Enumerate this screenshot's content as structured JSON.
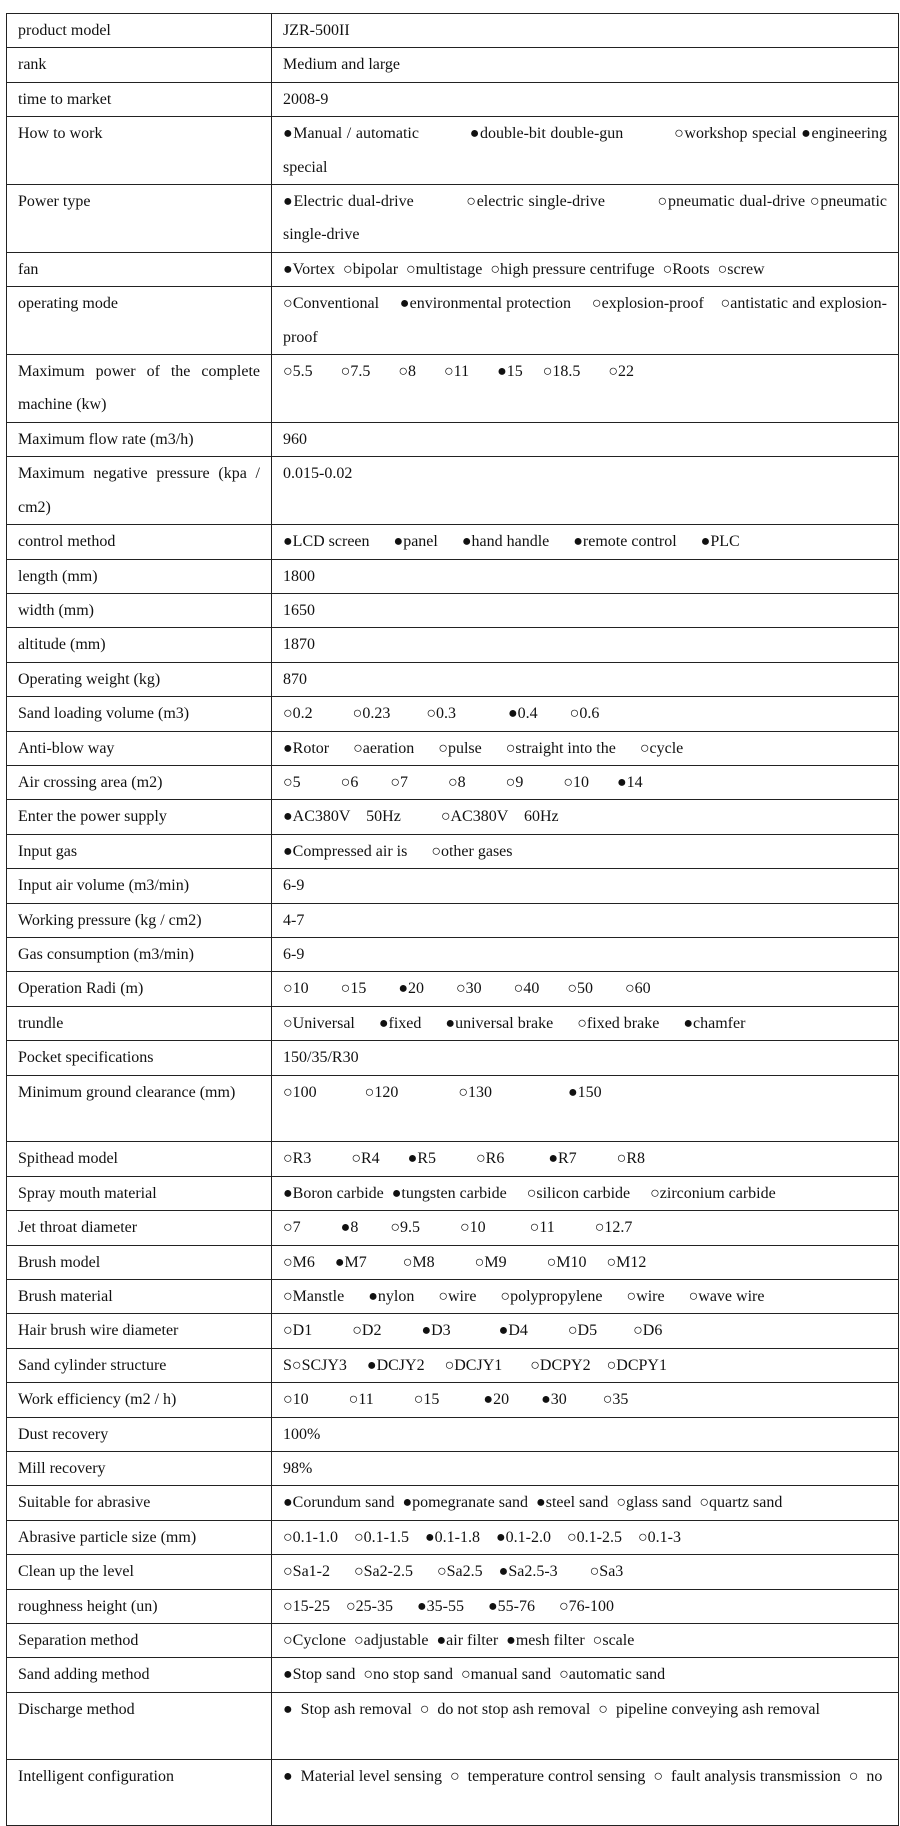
{
  "rows": [
    {
      "label": "product model",
      "value": "JZR-500II"
    },
    {
      "label": "rank",
      "value": "Medium and large"
    },
    {
      "label": "time to market",
      "value": "2008-9"
    },
    {
      "label": "How to work",
      "value": "●Manual / automatic           ●double-bit double-gun           ○workshop special ●engineering special"
    },
    {
      "label": "Power type",
      "value": "●Electric dual-drive           ○electric single-drive           ○pneumatic dual-drive ○pneumatic single-drive"
    },
    {
      "label": "fan",
      "value": "●Vortex  ○bipolar  ○multistage  ○high pressure centrifuge  ○Roots  ○screw"
    },
    {
      "label": "operating mode",
      "value": "○Conventional     ●environmental protection     ○explosion-proof    ○antistatic and explosion-proof"
    },
    {
      "label": "Maximum power of the complete machine (kw)",
      "value": "○5.5       ○7.5       ○8       ○11       ●15     ○18.5       ○22"
    },
    {
      "label": "Maximum flow rate (m3/h)",
      "value": "960"
    },
    {
      "label": "Maximum negative pressure (kpa / cm2)",
      "value": "0.015-0.02"
    },
    {
      "label": "control method",
      "value": "●LCD screen      ●panel      ●hand handle      ●remote control      ●PLC"
    },
    {
      "label": "length (mm)",
      "value": "1800"
    },
    {
      "label": "width (mm)",
      "value": "1650"
    },
    {
      "label": "altitude (mm)",
      "value": "1870"
    },
    {
      "label": "Operating weight (kg)",
      "value": "870"
    },
    {
      "label": "Sand loading volume (m3)",
      "value": "○0.2          ○0.23         ○0.3             ●0.4        ○0.6"
    },
    {
      "label": "Anti-blow way",
      "value": "●Rotor      ○aeration      ○pulse      ○straight into the      ○cycle"
    },
    {
      "label": "Air crossing area (m2)",
      "value": "○5          ○6        ○7          ○8          ○9          ○10       ●14"
    },
    {
      "label": "Enter the power supply",
      "value": "●AC380V    50Hz          ○AC380V    60Hz"
    },
    {
      "label": "Input gas",
      "value": "●Compressed air is      ○other gases"
    },
    {
      "label": "Input air volume (m3/min)",
      "value": "6-9"
    },
    {
      "label": "Working pressure (kg / cm2)",
      "value": "4-7"
    },
    {
      "label": "Gas consumption (m3/min)",
      "value": "6-9"
    },
    {
      "label": "Operation Radi (m)",
      "value": "○10        ○15        ●20        ○30        ○40       ○50        ○60"
    },
    {
      "label": "trundle",
      "value": "○Universal      ●fixed      ●universal brake      ○fixed brake      ●chamfer"
    },
    {
      "label": "Pocket specifications",
      "value": "150/35/R30"
    },
    {
      "label": "Minimum ground clearance (mm)",
      "value": "○100            ○120               ○130                   ●150"
    },
    {
      "label": "Spithead model",
      "value": "○R3          ○R4       ●R5          ○R6           ●R7          ○R8"
    },
    {
      "label": "Spray mouth material",
      "value": "●Boron carbide  ●tungsten carbide     ○silicon carbide     ○zirconium carbide"
    },
    {
      "label": "Jet throat diameter",
      "value": "○7          ●8        ○9.5          ○10           ○11          ○12.7"
    },
    {
      "label": "Brush model",
      "value": "○M6     ●M7         ○M8          ○M9          ○M10     ○M12"
    },
    {
      "label": "Brush material",
      "value": "○Manstle      ●nylon      ○wire      ○polypropylene      ○wire      ○wave wire"
    },
    {
      "label": "Hair brush wire diameter",
      "value": "○D1          ○D2          ●D3            ●D4          ○D5         ○D6"
    },
    {
      "label": "Sand cylinder structure",
      "value": "S○SCJY3     ●DCJY2     ○DCJY1       ○DCPY2    ○DCPY1"
    },
    {
      "label": "Work efficiency (m2 / h)",
      "value": "○10          ○11          ○15           ●20        ●30         ○35"
    },
    {
      "label": "Dust recovery",
      "value": "100%"
    },
    {
      "label": "Mill recovery",
      "value": "98%"
    },
    {
      "label": "Suitable for abrasive",
      "value": "●Corundum sand  ●pomegranate sand  ●steel sand  ○glass sand  ○quartz sand"
    },
    {
      "label": "Abrasive particle size (mm)",
      "value": "○0.1-1.0    ○0.1-1.5    ●0.1-1.8    ●0.1-2.0    ○0.1-2.5    ○0.1-3"
    },
    {
      "label": "Clean up the level",
      "value": "○Sa1-2      ○Sa2-2.5      ○Sa2.5    ●Sa2.5-3        ○Sa3"
    },
    {
      "label": "roughness height (un)",
      "value": "○15-25    ○25-35      ●35-55      ●55-76      ○76-100"
    },
    {
      "label": "Separation method",
      "value": "○Cyclone  ○adjustable  ●air filter  ●mesh filter  ○scale"
    },
    {
      "label": "Sand adding method",
      "value": "●Stop sand  ○no stop sand  ○manual sand  ○automatic sand"
    },
    {
      "label": "Discharge method",
      "value": "●  Stop ash removal  ○  do not stop ash removal  ○  pipeline conveying ash removal"
    },
    {
      "label": "Intelligent configuration",
      "value": "●  Material level sensing  ○  temperature control sensing  ○  fault analysis transmission  ○  no"
    }
  ]
}
